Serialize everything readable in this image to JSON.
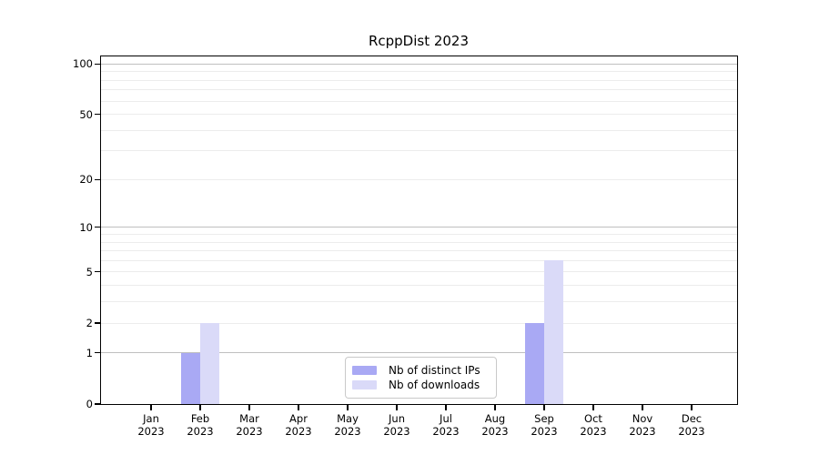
{
  "title": "RcppDist 2023",
  "colors": {
    "ips_bar": "#a9a9f4",
    "downloads_bar": "#dadaf8",
    "grid_major": "#bfbfbf",
    "grid_minor": "#ececec",
    "axis": "#000000",
    "legend_border": "#c9c9c9",
    "background": "#ffffff"
  },
  "legend": {
    "items": [
      {
        "label": "Nb of distinct IPs",
        "color": "#a9a9f4"
      },
      {
        "label": "Nb of downloads",
        "color": "#dadaf8"
      }
    ]
  },
  "chart_data": {
    "type": "bar",
    "title": "RcppDist 2023",
    "categories": [
      "Jan 2023",
      "Feb 2023",
      "Mar 2023",
      "Apr 2023",
      "May 2023",
      "Jun 2023",
      "Jul 2023",
      "Aug 2023",
      "Sep 2023",
      "Oct 2023",
      "Nov 2023",
      "Dec 2023"
    ],
    "months": [
      "Jan",
      "Feb",
      "Mar",
      "Apr",
      "May",
      "Jun",
      "Jul",
      "Aug",
      "Sep",
      "Oct",
      "Nov",
      "Dec"
    ],
    "year": "2023",
    "series": [
      {
        "name": "Nb of distinct IPs",
        "color": "#a9a9f4",
        "values": [
          0,
          1,
          0,
          0,
          0,
          0,
          0,
          0,
          2,
          0,
          0,
          0
        ]
      },
      {
        "name": "Nb of downloads",
        "color": "#dadaf8",
        "values": [
          0,
          2,
          0,
          0,
          0,
          0,
          0,
          0,
          6,
          0,
          0,
          0
        ]
      }
    ],
    "xlabel": "",
    "ylabel": "",
    "y_scale": "log1p",
    "y_ticks": [
      0,
      1,
      2,
      5,
      10,
      20,
      50,
      100
    ],
    "grid_major": [
      1,
      10,
      100
    ],
    "grid_minor": [
      2,
      3,
      4,
      5,
      6,
      7,
      8,
      9,
      20,
      30,
      40,
      50,
      60,
      70,
      80,
      90
    ],
    "ylim": [
      0,
      110
    ],
    "grid": "horizontal",
    "legend_position": "inside lower center"
  }
}
